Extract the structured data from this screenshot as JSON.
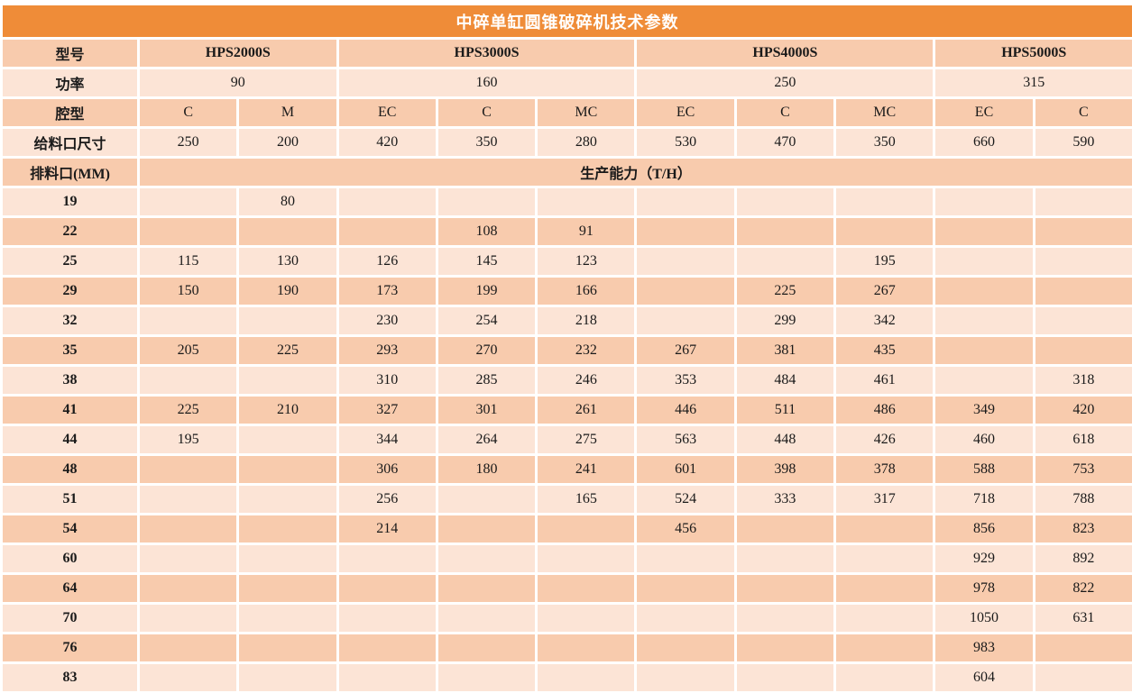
{
  "title": "中碎单缸圆锥破碎机技术参数",
  "colors": {
    "title_bg": "#EF8C38",
    "title_text": "#FFFFFF",
    "band_dark": "#F8CBAD",
    "band_light": "#FCE4D6",
    "grid_line": "#FFFFFF",
    "data_text": "#1A1A1A"
  },
  "table": {
    "header": {
      "model_label": "型号",
      "models": [
        "HPS2000S",
        "HPS3000S",
        "HPS4000S",
        "HPS5000S"
      ],
      "power_label": "功率",
      "powers": [
        "90",
        "160",
        "250",
        "315"
      ],
      "cavity_label": "腔型",
      "cavities": [
        "C",
        "M",
        "EC",
        "C",
        "MC",
        "EC",
        "C",
        "MC",
        "EC",
        "C"
      ],
      "feed_label": "给料口尺寸",
      "feeds": [
        "250",
        "200",
        "420",
        "350",
        "280",
        "530",
        "470",
        "350",
        "660",
        "590"
      ],
      "discharge_label": "排料口(MM)",
      "capacity_label": "生产能力（T/H）"
    },
    "rows": [
      {
        "label": "19",
        "values": [
          "",
          "80",
          "",
          "",
          "",
          "",
          "",
          "",
          "",
          ""
        ]
      },
      {
        "label": "22",
        "values": [
          "",
          "",
          "",
          "108",
          "91",
          "",
          "",
          "",
          "",
          ""
        ]
      },
      {
        "label": "25",
        "values": [
          "115",
          "130",
          "126",
          "145",
          "123",
          "",
          "",
          "195",
          "",
          ""
        ]
      },
      {
        "label": "29",
        "values": [
          "150",
          "190",
          "173",
          "199",
          "166",
          "",
          "225",
          "267",
          "",
          ""
        ]
      },
      {
        "label": "32",
        "values": [
          "",
          "",
          "230",
          "254",
          "218",
          "",
          "299",
          "342",
          "",
          ""
        ]
      },
      {
        "label": "35",
        "values": [
          "205",
          "225",
          "293",
          "270",
          "232",
          "267",
          "381",
          "435",
          "",
          ""
        ]
      },
      {
        "label": "38",
        "values": [
          "",
          "",
          "310",
          "285",
          "246",
          "353",
          "484",
          "461",
          "",
          "318"
        ]
      },
      {
        "label": "41",
        "values": [
          "225",
          "210",
          "327",
          "301",
          "261",
          "446",
          "511",
          "486",
          "349",
          "420"
        ]
      },
      {
        "label": "44",
        "values": [
          "195",
          "",
          "344",
          "264",
          "275",
          "563",
          "448",
          "426",
          "460",
          "618"
        ]
      },
      {
        "label": "48",
        "values": [
          "",
          "",
          "306",
          "180",
          "241",
          "601",
          "398",
          "378",
          "588",
          "753"
        ]
      },
      {
        "label": "51",
        "values": [
          "",
          "",
          "256",
          "",
          "165",
          "524",
          "333",
          "317",
          "718",
          "788"
        ]
      },
      {
        "label": "54",
        "values": [
          "",
          "",
          "214",
          "",
          "",
          "456",
          "",
          "",
          "856",
          "823"
        ]
      },
      {
        "label": "60",
        "values": [
          "",
          "",
          "",
          "",
          "",
          "",
          "",
          "",
          "929",
          "892"
        ]
      },
      {
        "label": "64",
        "values": [
          "",
          "",
          "",
          "",
          "",
          "",
          "",
          "",
          "978",
          "822"
        ]
      },
      {
        "label": "70",
        "values": [
          "",
          "",
          "",
          "",
          "",
          "",
          "",
          "",
          "1050",
          "631"
        ]
      },
      {
        "label": "76",
        "values": [
          "",
          "",
          "",
          "",
          "",
          "",
          "",
          "",
          "983",
          ""
        ]
      },
      {
        "label": "83",
        "values": [
          "",
          "",
          "",
          "",
          "",
          "",
          "",
          "",
          "604",
          ""
        ]
      }
    ]
  }
}
